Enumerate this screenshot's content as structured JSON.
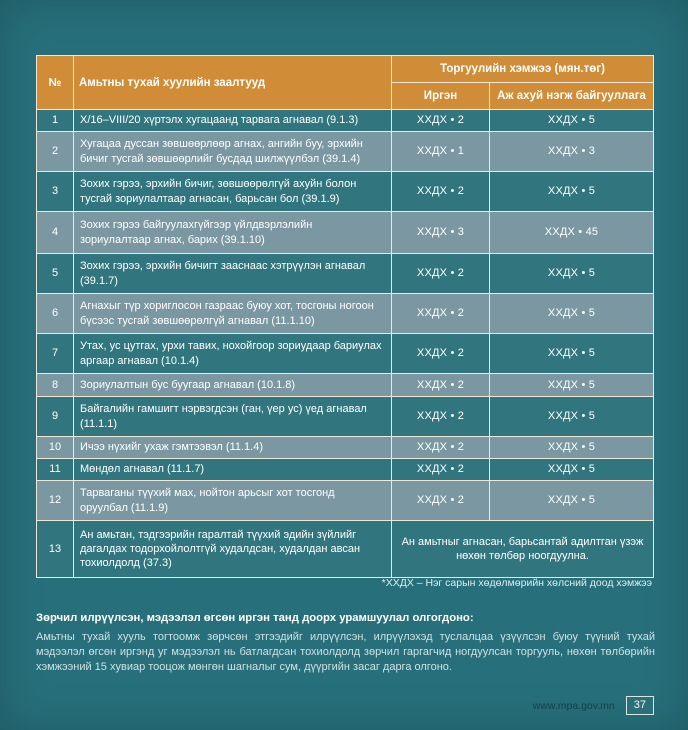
{
  "table": {
    "header": {
      "num": "№",
      "provisions": "Амьтны тухай хуулийн заалтууд",
      "fine_group": "Торгуулийн хэмжээ (мян.төг)",
      "citizen": "Иргэн",
      "entity": "Аж ахуй нэгж байгууллага"
    },
    "rows": [
      {
        "num": "1",
        "text": "Х/16–VIII/20 хүртэлх хугацаанд тарвага агнавал (9.1.3)",
        "citizen": "ХХДХ • 2",
        "entity": "ХХДХ • 5"
      },
      {
        "num": "2",
        "text": "Хугацаа дуссан зөвшөөрлөөр агнах, ангийн буу, эрхийн бичиг тусгай зөвшөөрлийг бусдад шилжүүлбэл (39.1.4)",
        "citizen": "ХХДХ • 1",
        "entity": "ХХДХ • 3"
      },
      {
        "num": "3",
        "text": "Зохих гэрээ, эрхийн бичиг, зөвшөөрөлгүй ахуйн болон тусгай зориулалтаар агнасан, барьсан бол (39.1.9)",
        "citizen": "ХХДХ • 2",
        "entity": "ХХДХ • 5"
      },
      {
        "num": "4",
        "text": "Зохих гэрээ байгуулахгүйгээр үйлдвэрлэлийн зориулалтаар агнах, барих (39.1.10)",
        "citizen": "ХХДХ • 3",
        "entity": "ХХДХ • 45"
      },
      {
        "num": "5",
        "text": "Зохих гэрээ, эрхийн бичигт зааснаас хэтрүүлэн агнавал (39.1.7)",
        "citizen": "ХХДХ • 2",
        "entity": "ХХДХ • 5"
      },
      {
        "num": "6",
        "text": "Агнахыг түр хориглосон газраас буюу хот, тосгоны ногоон бүсээс тусгай зөвшөөрөлгүй агнавал (11.1.10)",
        "citizen": "ХХДХ • 2",
        "entity": "ХХДХ • 5"
      },
      {
        "num": "7",
        "text": "Утах, ус цутгах, урхи тавих, нохойгоор зориудаар бариулах аргаар агнавал (10.1.4)",
        "citizen": "ХХДХ • 2",
        "entity": "ХХДХ • 5"
      },
      {
        "num": "8",
        "text": "Зориулалтын бус буугаар агнавал (10.1.8)",
        "citizen": "ХХДХ • 2",
        "entity": "ХХДХ • 5"
      },
      {
        "num": "9",
        "text": "Байгалийн гамшигт нэрвэгдсэн (ган, үер ус) үед агнавал (11.1.1)",
        "citizen": "ХХДХ • 2",
        "entity": "ХХДХ • 5"
      },
      {
        "num": "10",
        "text": "Ичээ нүхийг ухаж гэмтээвэл (11.1.4)",
        "citizen": "ХХДХ • 2",
        "entity": "ХХДХ • 5"
      },
      {
        "num": "11",
        "text": "Мөндөл агнавал (11.1.7)",
        "citizen": "ХХДХ • 2",
        "entity": "ХХДХ • 5"
      },
      {
        "num": "12",
        "text": "Тарваганы түүхий мах, нойтон арьсыг хот тосгонд оруулбал (11.1.9)",
        "citizen": "ХХДХ • 2",
        "entity": "ХХДХ • 5"
      },
      {
        "num": "13",
        "text": "Ан амьтан, тэдгээрийн гаралтай түүхий эдийн зүйлийг дагалдах тодорхойлолтгүй худалдсан, худалдан авсан тохиолдолд (37.3)",
        "merged": "Ан амьтныг агнасан, барьсантай адилтган үзэж нөхөн төлбөр ноогдуулна."
      }
    ],
    "footnote": "*ХХДХ – Нэг сарын хөдөлмөрийн хөлсний доод хэмжээ"
  },
  "notice": {
    "heading": "Зөрчил илрүүлсэн, мэдээлэл өгсөн иргэн танд доорх урамшуулал олгогдоно:",
    "body": "Амьтны тухай хууль тогтоомж зөрчсөн этгээдийг илрүүлсэн, илрүүлэхэд туслалцаа үзүүлсэн буюу түүний тухай мэдээлэл өгсөн иргэнд уг мэдээлэл нь батлагдсан тохиолдолд зөрчил гаргагчид ногдуулсан торгууль, нөхөн төлбөрийн хэмжээний 15 хувиар тооцож мөнгөн шагналыг сум, дүүргийн засаг дарга олгоно."
  },
  "footer": {
    "website": "www.mpa.gov.mn",
    "page_number": "37"
  },
  "colors": {
    "page_background": "#27707b",
    "header_orange": "#d08c36",
    "row_dark": "#31767f",
    "row_light": "#7b98a2",
    "border_cream": "#efe8d6",
    "footer_link": "#14414a"
  }
}
